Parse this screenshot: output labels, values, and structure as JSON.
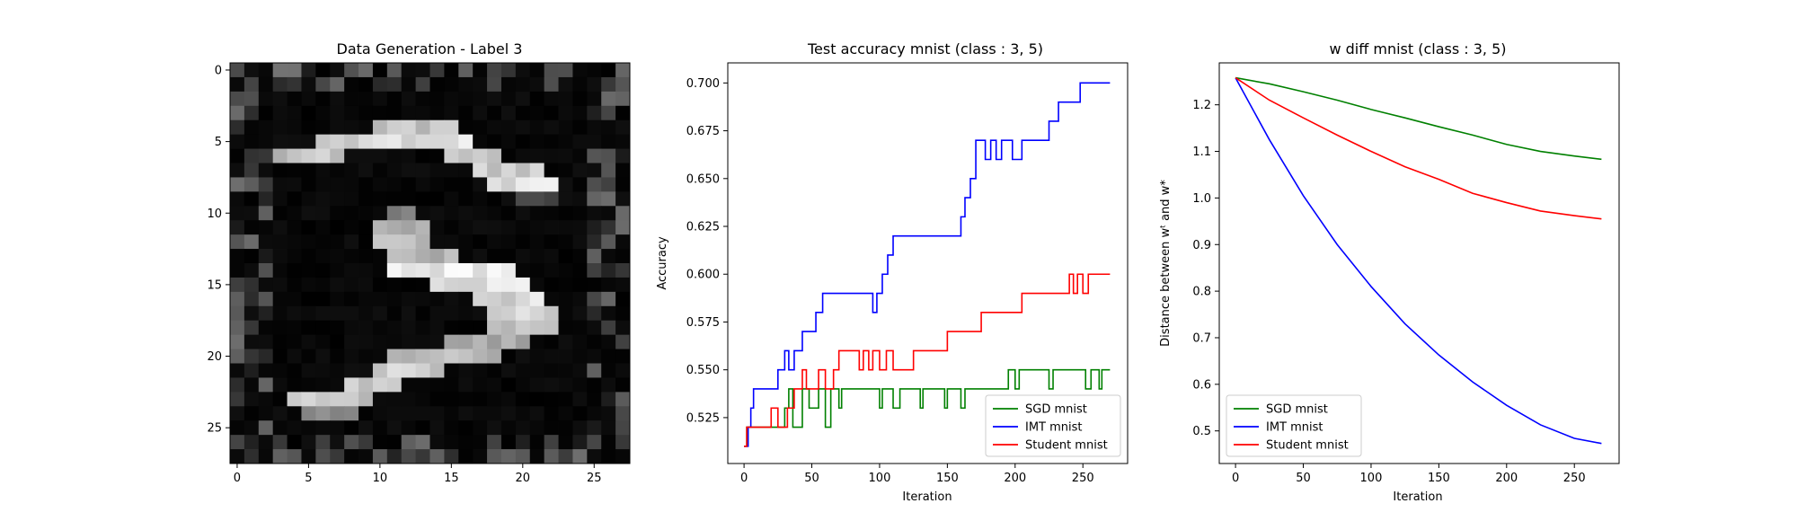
{
  "figure": {
    "panels": [
      {
        "title": "Data Generation - Label 3"
      },
      {
        "title": "Test accuracy mnist (class : 3, 5)",
        "xlabel": "Iteration",
        "ylabel": "Accuracy"
      },
      {
        "title": "w diff mnist (class : 3, 5)",
        "xlabel": "Iteration",
        "ylabel": "Distance between wᵗ and w*"
      }
    ]
  },
  "chart_data": [
    {
      "type": "heatmap",
      "title": "Data Generation - Label 3",
      "colormap": "gray",
      "x_ticks": [
        0,
        5,
        10,
        15,
        20,
        25
      ],
      "y_ticks": [
        0,
        5,
        10,
        15,
        20,
        25
      ],
      "grid_size": [
        28,
        28
      ],
      "description_values": "28x28 grayscale image of a handwritten digit 3, pixel intensity 0-1",
      "strokes": [
        {
          "row": 4,
          "cols": [
            10,
            11,
            12,
            13,
            14,
            15
          ],
          "value": 0.85
        },
        {
          "row": 5,
          "cols": [
            6,
            7,
            8,
            9,
            10,
            11,
            12,
            13,
            14,
            15,
            16
          ],
          "value": 0.95
        },
        {
          "row": 6,
          "cols": [
            3,
            4,
            5,
            6,
            7,
            15,
            16,
            17,
            18
          ],
          "value": 0.85
        },
        {
          "row": 7,
          "cols": [
            17,
            18,
            19,
            20,
            21
          ],
          "value": 0.9
        },
        {
          "row": 8,
          "cols": [
            18,
            19,
            20,
            21,
            22
          ],
          "value": 0.95
        },
        {
          "row": 9,
          "cols": [
            20,
            21,
            22
          ],
          "value": 0.3
        },
        {
          "row": 10,
          "cols": [
            11,
            12
          ],
          "value": 0.55
        },
        {
          "row": 11,
          "cols": [
            10,
            11,
            12,
            13
          ],
          "value": 0.75
        },
        {
          "row": 12,
          "cols": [
            10,
            11,
            12,
            13
          ],
          "value": 0.85
        },
        {
          "row": 13,
          "cols": [
            11,
            12,
            13,
            14,
            15
          ],
          "value": 0.8
        },
        {
          "row": 14,
          "cols": [
            11,
            12,
            13,
            14,
            15,
            16,
            17,
            18,
            19
          ],
          "value": 1.0
        },
        {
          "row": 15,
          "cols": [
            14,
            15,
            16,
            17,
            18,
            19,
            20
          ],
          "value": 0.95
        },
        {
          "row": 16,
          "cols": [
            17,
            18,
            19,
            20,
            21
          ],
          "value": 0.95
        },
        {
          "row": 17,
          "cols": [
            18,
            19,
            20,
            21,
            22
          ],
          "value": 0.9
        },
        {
          "row": 18,
          "cols": [
            18,
            19,
            20,
            21,
            22
          ],
          "value": 0.85
        },
        {
          "row": 19,
          "cols": [
            15,
            16,
            17,
            18,
            19,
            20
          ],
          "value": 0.75
        },
        {
          "row": 20,
          "cols": [
            11,
            12,
            13,
            14,
            15,
            16,
            17,
            18
          ],
          "value": 0.8
        },
        {
          "row": 21,
          "cols": [
            10,
            11,
            12,
            13,
            14
          ],
          "value": 0.9
        },
        {
          "row": 22,
          "cols": [
            8,
            9,
            10,
            11
          ],
          "value": 0.85
        },
        {
          "row": 23,
          "cols": [
            4,
            5,
            6,
            7,
            8,
            9
          ],
          "value": 0.85
        },
        {
          "row": 24,
          "cols": [
            5,
            6,
            7,
            8
          ],
          "value": 0.6
        }
      ]
    },
    {
      "type": "line",
      "title": "Test accuracy mnist (class : 3, 5)",
      "xlabel": "Iteration",
      "ylabel": "Accuracy",
      "xlim": [
        -12,
        283
      ],
      "ylim": [
        0.501,
        0.7105
      ],
      "x_ticks": [
        0,
        50,
        100,
        150,
        200,
        250
      ],
      "y_ticks": [
        0.525,
        0.55,
        0.575,
        0.6,
        0.625,
        0.65,
        0.675,
        0.7
      ],
      "y_tick_labels": [
        "0.525",
        "0.550",
        "0.575",
        "0.600",
        "0.625",
        "0.650",
        "0.675",
        "0.700"
      ],
      "legend": "lower right",
      "series": [
        {
          "name": "SGD mnist",
          "color": "#008000",
          "steps": [
            [
              0,
              0.51
            ],
            [
              2,
              0.52
            ],
            [
              30,
              0.53
            ],
            [
              33,
              0.54
            ],
            [
              36,
              0.52
            ],
            [
              43,
              0.54
            ],
            [
              48,
              0.53
            ],
            [
              55,
              0.54
            ],
            [
              60,
              0.52
            ],
            [
              64,
              0.54
            ],
            [
              70,
              0.53
            ],
            [
              72,
              0.54
            ],
            [
              100,
              0.53
            ],
            [
              102,
              0.54
            ],
            [
              110,
              0.53
            ],
            [
              115,
              0.54
            ],
            [
              130,
              0.53
            ],
            [
              132,
              0.54
            ],
            [
              148,
              0.53
            ],
            [
              150,
              0.54
            ],
            [
              160,
              0.53
            ],
            [
              163,
              0.54
            ],
            [
              195,
              0.55
            ],
            [
              200,
              0.54
            ],
            [
              203,
              0.55
            ],
            [
              225,
              0.54
            ],
            [
              228,
              0.55
            ],
            [
              252,
              0.54
            ],
            [
              256,
              0.55
            ],
            [
              262,
              0.54
            ],
            [
              264,
              0.55
            ],
            [
              270,
              0.55
            ]
          ]
        },
        {
          "name": "IMT mnist",
          "color": "#0000ff",
          "steps": [
            [
              0,
              0.51
            ],
            [
              3,
              0.52
            ],
            [
              5,
              0.53
            ],
            [
              7,
              0.54
            ],
            [
              25,
              0.55
            ],
            [
              30,
              0.56
            ],
            [
              33,
              0.55
            ],
            [
              37,
              0.56
            ],
            [
              43,
              0.57
            ],
            [
              48,
              0.57
            ],
            [
              53,
              0.58
            ],
            [
              58,
              0.59
            ],
            [
              95,
              0.58
            ],
            [
              98,
              0.59
            ],
            [
              102,
              0.6
            ],
            [
              106,
              0.61
            ],
            [
              110,
              0.62
            ],
            [
              160,
              0.63
            ],
            [
              163,
              0.64
            ],
            [
              167,
              0.65
            ],
            [
              171,
              0.67
            ],
            [
              178,
              0.66
            ],
            [
              182,
              0.67
            ],
            [
              186,
              0.66
            ],
            [
              190,
              0.67
            ],
            [
              198,
              0.66
            ],
            [
              205,
              0.67
            ],
            [
              225,
              0.68
            ],
            [
              232,
              0.69
            ],
            [
              248,
              0.7
            ],
            [
              270,
              0.7
            ]
          ]
        },
        {
          "name": "Student mnist",
          "color": "#ff0000",
          "steps": [
            [
              0,
              0.51
            ],
            [
              2,
              0.52
            ],
            [
              20,
              0.53
            ],
            [
              25,
              0.52
            ],
            [
              32,
              0.53
            ],
            [
              37,
              0.54
            ],
            [
              43,
              0.55
            ],
            [
              46,
              0.54
            ],
            [
              55,
              0.55
            ],
            [
              60,
              0.54
            ],
            [
              66,
              0.55
            ],
            [
              70,
              0.56
            ],
            [
              85,
              0.55
            ],
            [
              88,
              0.56
            ],
            [
              92,
              0.55
            ],
            [
              95,
              0.56
            ],
            [
              100,
              0.55
            ],
            [
              105,
              0.56
            ],
            [
              110,
              0.55
            ],
            [
              125,
              0.56
            ],
            [
              147,
              0.56
            ],
            [
              150,
              0.57
            ],
            [
              172,
              0.57
            ],
            [
              175,
              0.58
            ],
            [
              205,
              0.59
            ],
            [
              236,
              0.59
            ],
            [
              240,
              0.6
            ],
            [
              243,
              0.59
            ],
            [
              246,
              0.6
            ],
            [
              250,
              0.59
            ],
            [
              254,
              0.6
            ],
            [
              270,
              0.6
            ]
          ]
        }
      ]
    },
    {
      "type": "line",
      "title": "w diff mnist (class : 3, 5)",
      "xlabel": "Iteration",
      "ylabel": "Distance between wᵗ and w*",
      "xlim": [
        -12,
        283
      ],
      "ylim": [
        0.43,
        1.29
      ],
      "x_ticks": [
        0,
        50,
        100,
        150,
        200,
        250
      ],
      "y_ticks": [
        0.5,
        0.6,
        0.7,
        0.8,
        0.9,
        1.0,
        1.1,
        1.2
      ],
      "y_tick_labels": [
        "0.5",
        "0.6",
        "0.7",
        "0.8",
        "0.9",
        "1.0",
        "1.1",
        "1.2"
      ],
      "legend": "lower left",
      "series": [
        {
          "name": "SGD mnist",
          "color": "#008000",
          "x": [
            0,
            25,
            50,
            75,
            100,
            125,
            150,
            175,
            200,
            225,
            250,
            270
          ],
          "y": [
            1.258,
            1.245,
            1.228,
            1.21,
            1.19,
            1.172,
            1.153,
            1.135,
            1.115,
            1.1,
            1.09,
            1.083
          ]
        },
        {
          "name": "IMT mnist",
          "color": "#0000ff",
          "x": [
            0,
            25,
            50,
            75,
            100,
            125,
            150,
            175,
            200,
            225,
            250,
            270
          ],
          "y": [
            1.258,
            1.125,
            1.005,
            0.9,
            0.81,
            0.73,
            0.663,
            0.605,
            0.555,
            0.513,
            0.484,
            0.473
          ]
        },
        {
          "name": "Student mnist",
          "color": "#ff0000",
          "x": [
            0,
            25,
            50,
            75,
            100,
            125,
            150,
            175,
            200,
            225,
            250,
            270
          ],
          "y": [
            1.258,
            1.21,
            1.172,
            1.135,
            1.1,
            1.067,
            1.04,
            1.01,
            0.99,
            0.972,
            0.962,
            0.955
          ]
        }
      ]
    }
  ]
}
